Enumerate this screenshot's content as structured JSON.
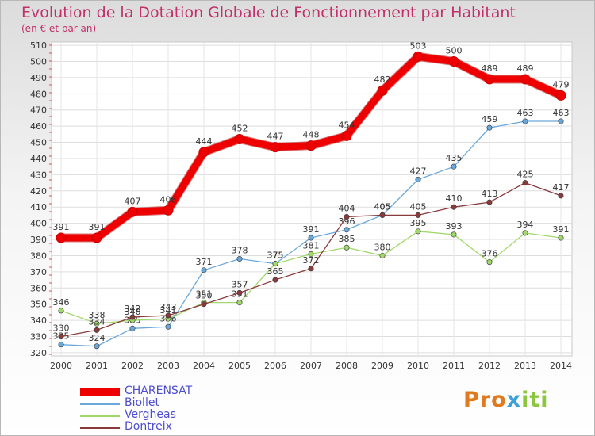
{
  "title": "Evolution de la Dotation Globale de Fonctionnement par Habitant",
  "subtitle": "(en € et par an)",
  "brand": {
    "p1": "Pro",
    "p2": "x",
    "p3": "iti"
  },
  "chart_data": {
    "type": "line",
    "x": [
      "2000",
      "2001",
      "2002",
      "2003",
      "2004",
      "2005",
      "2006",
      "2007",
      "2008",
      "2009",
      "2010",
      "2011",
      "2012",
      "2013",
      "2014"
    ],
    "yticks": [
      320,
      330,
      340,
      350,
      360,
      370,
      380,
      390,
      400,
      410,
      420,
      430,
      440,
      450,
      460,
      470,
      480,
      490,
      500,
      510
    ],
    "ylim": [
      318,
      512
    ],
    "series": [
      {
        "name": "CHARENSAT",
        "color": "#ee0000",
        "width": 9,
        "values": [
          391,
          391,
          407,
          408,
          444,
          452,
          447,
          448,
          454,
          482,
          503,
          500,
          489,
          489,
          479
        ]
      },
      {
        "name": "Biollet",
        "color": "#6aa8dc",
        "width": 1.3,
        "values": [
          325,
          324,
          335,
          336,
          371,
          378,
          375,
          391,
          396,
          405,
          427,
          435,
          459,
          463,
          463
        ]
      },
      {
        "name": "Vergheas",
        "color": "#a0d86a",
        "width": 1.3,
        "values": [
          346,
          338,
          340,
          341,
          351,
          351,
          375,
          381,
          385,
          380,
          395,
          393,
          376,
          394,
          391
        ]
      },
      {
        "name": "Dontreix",
        "color": "#8a3a3a",
        "width": 1.3,
        "values": [
          330,
          334,
          342,
          343,
          350,
          357,
          365,
          372,
          404,
          405,
          405,
          410,
          413,
          425,
          417
        ]
      }
    ]
  }
}
